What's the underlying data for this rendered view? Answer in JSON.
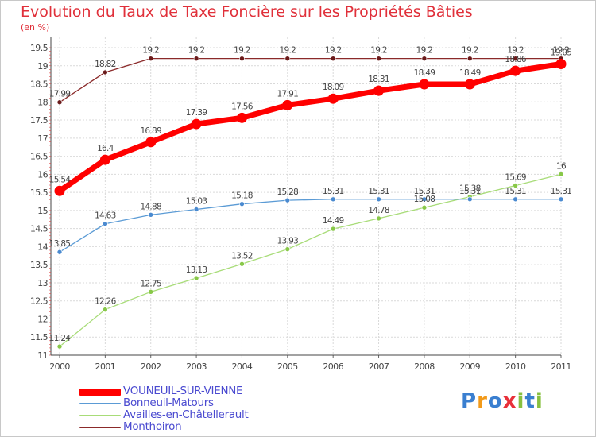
{
  "chart_data": {
    "type": "line",
    "title": "Evolution du Taux de Taxe Foncière sur les Propriétés Bâties",
    "subtitle": "(en %)",
    "ylim": [
      11,
      19.5
    ],
    "y_ticks": [
      "11",
      "11.5",
      "12",
      "12.5",
      "13",
      "13.5",
      "14",
      "14.5",
      "15",
      "15.5",
      "16",
      "16.5",
      "17",
      "17.5",
      "18",
      "18.5",
      "19",
      "19.5"
    ],
    "categories": [
      "2000",
      "2001",
      "2002",
      "2003",
      "2004",
      "2005",
      "2006",
      "2007",
      "2008",
      "2009",
      "2010",
      "2011"
    ],
    "series": [
      {
        "name": "VOUNEUIL-SUR-VIENNE",
        "color": "#ff0000",
        "values": [
          15.54,
          16.4,
          16.89,
          17.39,
          17.56,
          17.91,
          18.09,
          18.31,
          18.49,
          18.49,
          18.86,
          19.05
        ],
        "labels": [
          "15.54",
          "16.4",
          "16.89",
          "17.39",
          "17.56",
          "17.91",
          "18.09",
          "18.31",
          "18.49",
          "18.49",
          "18.86",
          "19.05"
        ]
      },
      {
        "name": "Bonneuil-Matours",
        "color": "#5b9bd5",
        "values": [
          13.85,
          14.63,
          14.88,
          15.03,
          15.18,
          15.28,
          15.31,
          15.31,
          15.31,
          15.31,
          15.31,
          15.31
        ],
        "labels": [
          "13.85",
          "14.63",
          "14.88",
          "15.03",
          "15.18",
          "15.28",
          "15.31",
          "15.31",
          "15.31",
          "15.31",
          "15.31",
          "15.31"
        ]
      },
      {
        "name": "Availles-en-Châtellerault",
        "color": "#a8dc78",
        "values": [
          11.24,
          12.26,
          12.75,
          13.13,
          13.52,
          13.93,
          14.49,
          14.78,
          15.08,
          15.38,
          15.69,
          16
        ],
        "labels": [
          "11.24",
          "12.26",
          "12.75",
          "13.13",
          "13.52",
          "13.93",
          "14.49",
          "14.78",
          "15.08",
          "15.38",
          "15.69",
          "16"
        ]
      },
      {
        "name": "Monthoiron",
        "color": "#8b2a2a",
        "values": [
          17.99,
          18.82,
          19.2,
          19.2,
          19.2,
          19.2,
          19.2,
          19.2,
          19.2,
          19.2,
          19.2,
          19.2
        ],
        "labels": [
          "17.99",
          "18.82",
          "19.2",
          "19.2",
          "19.2",
          "19.2",
          "19.2",
          "19.2",
          "19.2",
          "19.2",
          "19.2",
          "19.2"
        ]
      }
    ],
    "grid": true,
    "legend": "bottom-left"
  },
  "brand": {
    "logo_text": "Proxiti",
    "letters": [
      "P",
      "r",
      "o",
      "x",
      "i",
      "t",
      "i"
    ],
    "letter_colors": [
      "#3a7fd0",
      "#f29a1a",
      "#3a7fd0",
      "#e8303a",
      "#88c040",
      "#3a7fd0",
      "#88c040"
    ]
  }
}
